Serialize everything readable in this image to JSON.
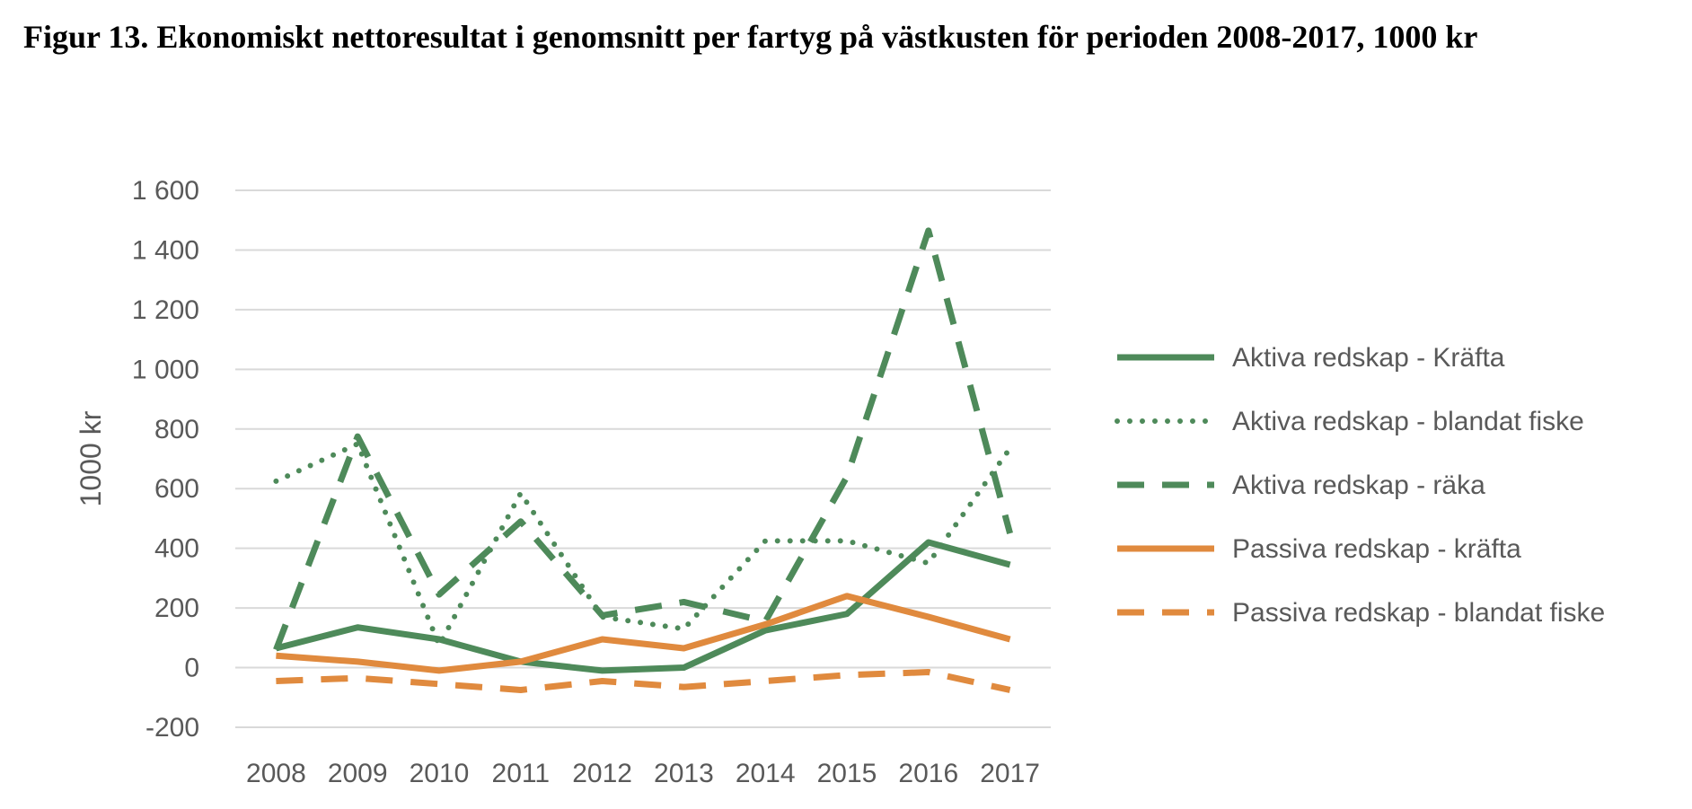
{
  "caption": "Figur 13. Ekonomiskt nettoresultat i genomsnitt per fartyg på västkusten för perioden 2008-2017, 1000 kr",
  "chart_data": {
    "type": "line",
    "title": "",
    "xlabel": "",
    "ylabel": "1000 kr",
    "categories": [
      "2008",
      "2009",
      "2010",
      "2011",
      "2012",
      "2013",
      "2014",
      "2015",
      "2016",
      "2017"
    ],
    "ylim": [
      -200,
      1600
    ],
    "yticks": [
      -200,
      0,
      200,
      400,
      600,
      800,
      1000,
      1200,
      1400,
      1600
    ],
    "ytick_labels": [
      "-200",
      "0",
      "200",
      "400",
      "600",
      "800",
      "1 000",
      "1 200",
      "1 400",
      "1 600"
    ],
    "grid": true,
    "legend_position": "right",
    "series": [
      {
        "name": "Aktiva redskap - Kräfta",
        "color": "#4e8a5a",
        "style": "solid",
        "values": [
          65,
          135,
          95,
          20,
          -10,
          0,
          125,
          180,
          420,
          345
        ]
      },
      {
        "name": "Aktiva redskap - blandat fiske",
        "color": "#4e8a5a",
        "style": "dotted",
        "values": [
          625,
          750,
          75,
          585,
          170,
          130,
          425,
          425,
          350,
          735
        ]
      },
      {
        "name": "Aktiva redskap - räka",
        "color": "#4e8a5a",
        "style": "dashed",
        "values": [
          60,
          775,
          245,
          490,
          175,
          220,
          155,
          640,
          1465,
          450
        ]
      },
      {
        "name": "Passiva redskap - kräfta",
        "color": "#e08a3e",
        "style": "solid",
        "values": [
          40,
          20,
          -10,
          20,
          95,
          65,
          145,
          240,
          170,
          95
        ]
      },
      {
        "name": "Passiva redskap - blandat fiske",
        "color": "#e08a3e",
        "style": "dashed",
        "values": [
          -45,
          -35,
          -55,
          -75,
          -45,
          -65,
          -45,
          -25,
          -15,
          -75
        ]
      }
    ]
  }
}
